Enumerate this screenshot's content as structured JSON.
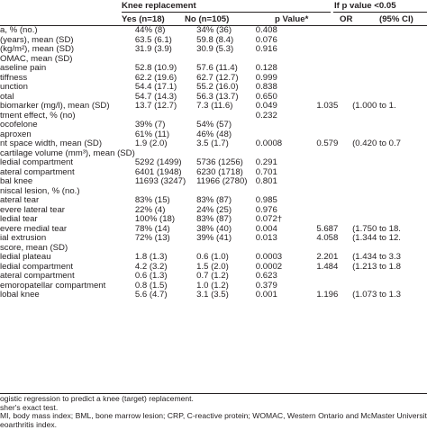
{
  "header": {
    "group_left": "Knee replacement",
    "group_right": "If p value <0.05",
    "col_yes": "Yes (n=18)",
    "col_no": "No (n=105)",
    "col_p": "p Value*",
    "col_or": "OR",
    "col_ci": "(95% CI)"
  },
  "rows": [
    {
      "label": "a, % (no.)",
      "indent": false,
      "yes": "44% (8)",
      "no": "34% (36)",
      "p": "0.408",
      "or": "",
      "ci": ""
    },
    {
      "label": "(years), mean (SD)",
      "indent": false,
      "yes": "63.5 (6.1)",
      "no": "59.8 (8.4)",
      "p": "0.076",
      "or": "",
      "ci": ""
    },
    {
      "label": "(kg/m²), mean (SD)",
      "indent": false,
      "yes": "31.9 (3.9)",
      "no": "30.9 (5.3)",
      "p": "0.916",
      "or": "",
      "ci": ""
    },
    {
      "label": "OMAC, mean (SD)",
      "indent": false,
      "yes": "",
      "no": "",
      "p": "",
      "or": "",
      "ci": ""
    },
    {
      "label": "aseline pain",
      "indent": false,
      "yes": "52.8 (10.9)",
      "no": "57.6 (11.4)",
      "p": "0.128",
      "or": "",
      "ci": ""
    },
    {
      "label": "tiffness",
      "indent": false,
      "yes": "62.2 (19.6)",
      "no": "62.7 (12.7)",
      "p": "0.999",
      "or": "",
      "ci": ""
    },
    {
      "label": "unction",
      "indent": false,
      "yes": "54.4 (17.1)",
      "no": "55.2 (16.0)",
      "p": "0.838",
      "or": "",
      "ci": ""
    },
    {
      "label": "otal",
      "indent": false,
      "yes": "54.7 (14.3)",
      "no": "56.3 (13.7)",
      "p": "0.650",
      "or": "",
      "ci": ""
    },
    {
      "label": "biomarker (mg/l), mean (SD)",
      "indent": false,
      "yes": "13.7 (12.7)",
      "no": "7.3 (11.6)",
      "p": "0.049",
      "or": "1.035",
      "ci": "(1.000 to 1."
    },
    {
      "label": "tment effect, % (no)",
      "indent": false,
      "yes": "",
      "no": "",
      "p": "0.232",
      "or": "",
      "ci": ""
    },
    {
      "label": "ocofelone",
      "indent": false,
      "yes": "39% (7)",
      "no": "54% (57)",
      "p": "",
      "or": "",
      "ci": ""
    },
    {
      "label": "aproxen",
      "indent": false,
      "yes": "61% (11)",
      "no": "46% (48)",
      "p": "",
      "or": "",
      "ci": ""
    },
    {
      "label": "nt space width, mean (SD)",
      "indent": false,
      "yes": "1.9 (2.0)",
      "no": "3.5 (1.7)",
      "p": "0.0008",
      "or": "0.579",
      "ci": "(0.420 to 0.7"
    },
    {
      "label": "cartilage volume (mm³), mean (SD)",
      "indent": false,
      "yes": "",
      "no": "",
      "p": "",
      "or": "",
      "ci": ""
    },
    {
      "label": "ledial compartment",
      "indent": false,
      "yes": "5292 (1499)",
      "no": "5736 (1256)",
      "p": "0.291",
      "or": "",
      "ci": ""
    },
    {
      "label": "ateral compartment",
      "indent": false,
      "yes": "6401 (1948)",
      "no": "6230 (1718)",
      "p": "0.701",
      "or": "",
      "ci": ""
    },
    {
      "label": "bal knee",
      "indent": false,
      "yes": "11693 (3247)",
      "no": "11966 (2780)",
      "p": "0.801",
      "or": "",
      "ci": ""
    },
    {
      "label": "niscal lesion, % (no.)",
      "indent": false,
      "yes": "",
      "no": "",
      "p": "",
      "or": "",
      "ci": ""
    },
    {
      "label": "ateral tear",
      "indent": false,
      "yes": "83% (15)",
      "no": "83% (87)",
      "p": "0.985",
      "or": "",
      "ci": ""
    },
    {
      "label": "evere lateral tear",
      "indent": false,
      "yes": "22% (4)",
      "no": "24% (25)",
      "p": "0.976",
      "or": "",
      "ci": ""
    },
    {
      "label": "ledial tear",
      "indent": false,
      "yes": "100% (18)",
      "no": "83% (87)",
      "p": "0.072†",
      "or": "",
      "ci": ""
    },
    {
      "label": "evere medial tear",
      "indent": false,
      "yes": "78% (14)",
      "no": "38% (40)",
      "p": "0.004",
      "or": "5.687",
      "ci": "(1.750 to 18."
    },
    {
      "label": "ial extrusion",
      "indent": false,
      "yes": "72% (13)",
      "no": "39% (41)",
      "p": "0.013",
      "or": "4.058",
      "ci": "(1.344 to 12."
    },
    {
      "label": "score, mean (SD)",
      "indent": false,
      "yes": "",
      "no": "",
      "p": "",
      "or": "",
      "ci": ""
    },
    {
      "label": "ledial plateau",
      "indent": false,
      "yes": "1.8 (1.3)",
      "no": "0.6 (1.0)",
      "p": "0.0003",
      "or": "2.201",
      "ci": "(1.434 to 3.3"
    },
    {
      "label": "ledial compartment",
      "indent": false,
      "yes": "4.2 (3.2)",
      "no": "1.5 (2.0)",
      "p": "0.0002",
      "or": "1.484",
      "ci": "(1.213 to 1.8"
    },
    {
      "label": "ateral compartment",
      "indent": false,
      "yes": "0.6 (1.3)",
      "no": "0.7 (1.2)",
      "p": "0.623",
      "or": "",
      "ci": ""
    },
    {
      "label": "emoropatellar compartment",
      "indent": false,
      "yes": "0.8 (1.5)",
      "no": "1.0 (1.2)",
      "p": "0.379",
      "or": "",
      "ci": ""
    },
    {
      "label": "lobal knee",
      "indent": false,
      "yes": "5.6 (4.7)",
      "no": "3.1 (3.5)",
      "p": "0.001",
      "or": "1.196",
      "ci": "(1.073 to 1.3"
    }
  ],
  "notes": [
    "ogistic regression to predict a knee (target) replacement.",
    "sher's exact test.",
    "MI, body mass index; BML, bone marrow lesion; CRP, C-reactive protein; WOMAC, Western Ontario and McMaster Universities",
    "eoarthritis index."
  ]
}
